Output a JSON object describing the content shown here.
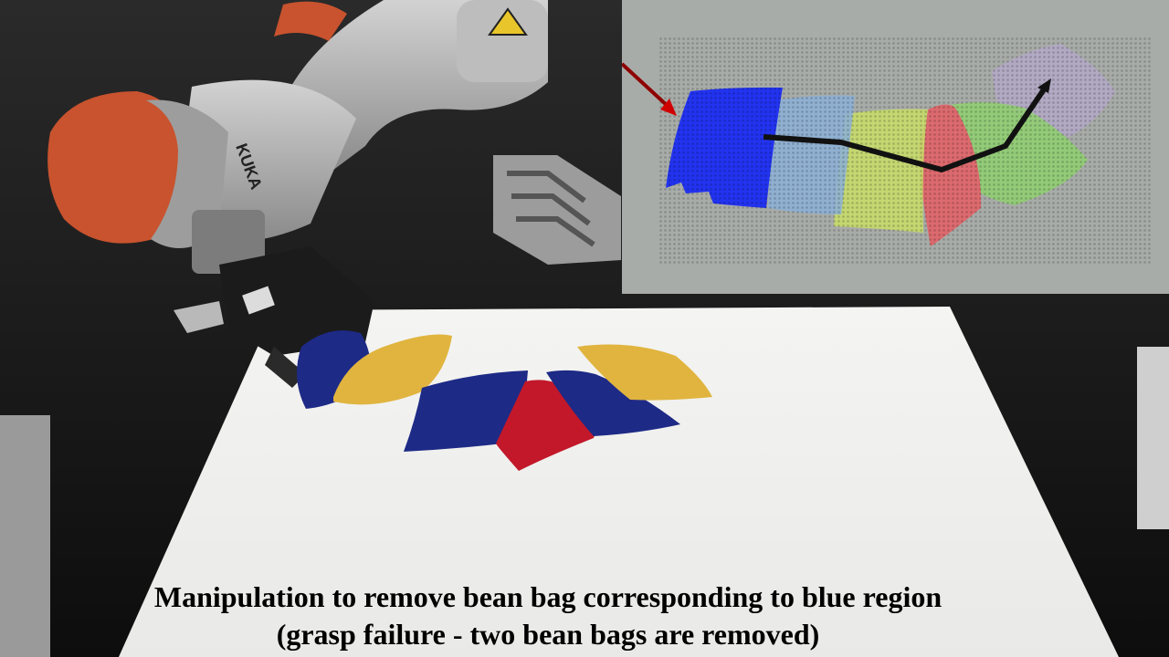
{
  "caption": {
    "line1": "Manipulation to remove bean bag corresponding to blue region",
    "line2": "(grasp failure - two bean bags are removed)"
  },
  "colors": {
    "table": "#f2f2f0",
    "robot_orange": "#c8532e",
    "robot_gray": "#a9a9a9",
    "bag_blue": "#1d2a86",
    "bag_red": "#c2182a",
    "bag_yellow": "#e0b43e",
    "inset_bg": "#a8aca8"
  },
  "inset": {
    "regions": [
      "blue",
      "light-blue",
      "yellow-green",
      "red",
      "green",
      "lavender"
    ],
    "trajectory": "black path with arrow"
  }
}
